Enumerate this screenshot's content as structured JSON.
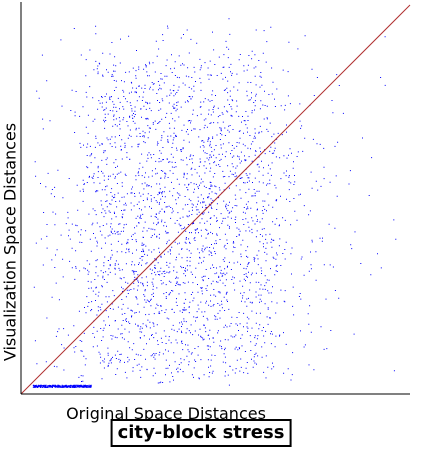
{
  "chart_data": {
    "type": "scatter",
    "title": "city-block stress",
    "xlabel": "Original Space Distances",
    "ylabel": "Visualization Space Distances",
    "xlim": [
      0,
      1
    ],
    "ylim": [
      0,
      1
    ],
    "grid": false,
    "legend": "none",
    "reference_line": {
      "x": [
        0,
        1
      ],
      "y": [
        0,
        1
      ]
    },
    "point_cloud": {
      "x_range": [
        0.03,
        0.97
      ],
      "y_range": [
        0.0,
        0.97
      ],
      "dense_core_x": [
        0.18,
        0.63
      ],
      "dense_core_y": [
        0.05,
        0.85
      ]
    }
  },
  "colors": {
    "points": "#0000ff",
    "reference_line": "#b03030",
    "axes": "#000000"
  }
}
